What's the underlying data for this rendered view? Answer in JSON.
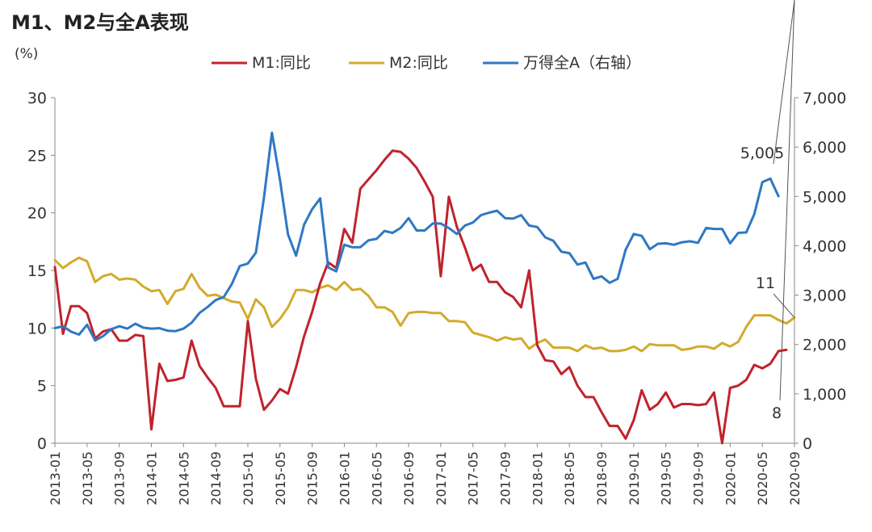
{
  "title": "M1、M2与全A表现",
  "chart_data": {
    "type": "line",
    "title": "M1、M2与全A表现",
    "y_unit": "(%)",
    "ylim_left": [
      0,
      30
    ],
    "ylim_right": [
      0,
      7000
    ],
    "yticks_left": [
      "0",
      "5",
      "10",
      "15",
      "20",
      "25",
      "30"
    ],
    "yticks_right": [
      "0",
      "1,000",
      "2,000",
      "3,000",
      "4,000",
      "5,000",
      "6,000",
      "7,000"
    ],
    "x_tick_labels": [
      "2013-01",
      "2013-05",
      "2013-09",
      "2014-01",
      "2014-05",
      "2014-09",
      "2015-01",
      "2015-05",
      "2015-09",
      "2016-01",
      "2016-05",
      "2016-09",
      "2017-01",
      "2017-05",
      "2017-09",
      "2018-01",
      "2018-05",
      "2018-09",
      "2019-01",
      "2019-05",
      "2019-09",
      "2020-01",
      "2020-05",
      "2020-09"
    ],
    "colors": {
      "m1": "#c0232c",
      "m2": "#d4aa2c",
      "wind": "#2f78c4"
    },
    "series": [
      {
        "name": "M1:同比",
        "axis": "left",
        "key": "m1",
        "values": [
          15.3,
          9.5,
          11.9,
          11.9,
          11.3,
          9.1,
          9.7,
          9.9,
          8.9,
          8.9,
          9.4,
          9.3,
          1.2,
          6.9,
          5.4,
          5.5,
          5.7,
          8.9,
          6.7,
          5.7,
          4.8,
          3.2,
          3.2,
          3.2,
          10.6,
          5.6,
          2.9,
          3.7,
          4.7,
          4.3,
          6.6,
          9.3,
          11.4,
          13.9,
          15.7,
          15.2,
          18.6,
          17.4,
          22.1,
          22.9,
          23.7,
          24.6,
          25.4,
          25.3,
          24.7,
          23.9,
          22.7,
          21.4,
          14.5,
          21.4,
          18.8,
          17.0,
          15.0,
          15.5,
          14.0,
          14.0,
          13.1,
          12.7,
          11.8,
          15.0,
          8.5,
          7.2,
          7.1,
          6.0,
          6.6,
          5.0,
          4.0,
          4.0,
          2.7,
          1.5,
          1.5,
          0.4,
          2.0,
          4.6,
          2.9,
          3.4,
          4.4,
          3.1,
          3.4,
          3.4,
          3.3,
          3.4,
          4.4,
          0.0,
          4.8,
          5.0,
          5.5,
          6.8,
          6.5,
          6.9,
          8.0,
          8.1
        ]
      },
      {
        "name": "M2:同比",
        "axis": "left",
        "key": "m2",
        "values": [
          15.9,
          15.2,
          15.7,
          16.1,
          15.8,
          14.0,
          14.5,
          14.7,
          14.2,
          14.3,
          14.2,
          13.6,
          13.2,
          13.3,
          12.1,
          13.2,
          13.4,
          14.7,
          13.5,
          12.8,
          12.9,
          12.6,
          12.3,
          12.2,
          10.8,
          12.5,
          11.8,
          10.1,
          10.8,
          11.8,
          13.3,
          13.3,
          13.1,
          13.5,
          13.7,
          13.3,
          14.0,
          13.3,
          13.4,
          12.8,
          11.8,
          11.8,
          11.4,
          10.2,
          11.3,
          11.4,
          11.4,
          11.3,
          11.3,
          10.6,
          10.6,
          10.5,
          9.6,
          9.4,
          9.2,
          8.9,
          9.2,
          9.0,
          9.1,
          8.2,
          8.7,
          9.0,
          8.3,
          8.3,
          8.3,
          8.0,
          8.5,
          8.2,
          8.3,
          8.0,
          8.0,
          8.1,
          8.4,
          8.0,
          8.6,
          8.5,
          8.5,
          8.5,
          8.1,
          8.2,
          8.4,
          8.4,
          8.2,
          8.7,
          8.4,
          8.8,
          10.1,
          11.1,
          11.1,
          11.1,
          10.7,
          10.4,
          10.9
        ]
      },
      {
        "name": "万得全A（右轴）",
        "axis": "right",
        "key": "wind",
        "values": [
          2330,
          2370,
          2260,
          2200,
          2400,
          2080,
          2170,
          2310,
          2370,
          2320,
          2420,
          2340,
          2320,
          2330,
          2280,
          2270,
          2320,
          2440,
          2640,
          2760,
          2900,
          2960,
          3220,
          3590,
          3640,
          3860,
          4970,
          6290,
          5330,
          4230,
          3800,
          4430,
          4740,
          4960,
          3560,
          3480,
          4020,
          3970,
          3970,
          4110,
          4140,
          4300,
          4260,
          4360,
          4560,
          4310,
          4310,
          4450,
          4450,
          4360,
          4240,
          4410,
          4470,
          4620,
          4670,
          4710,
          4560,
          4550,
          4620,
          4410,
          4380,
          4170,
          4100,
          3880,
          3850,
          3620,
          3660,
          3330,
          3380,
          3250,
          3330,
          3920,
          4240,
          4200,
          3930,
          4040,
          4050,
          4020,
          4070,
          4090,
          4060,
          4360,
          4340,
          4340,
          4050,
          4260,
          4270,
          4640,
          5290,
          5360,
          5005
        ]
      }
    ],
    "annotations": [
      {
        "text": "5,005",
        "series": "wind"
      },
      {
        "text": "11",
        "series": "m2"
      },
      {
        "text": "8",
        "series": "m1"
      }
    ],
    "legend_position": "top-center"
  }
}
